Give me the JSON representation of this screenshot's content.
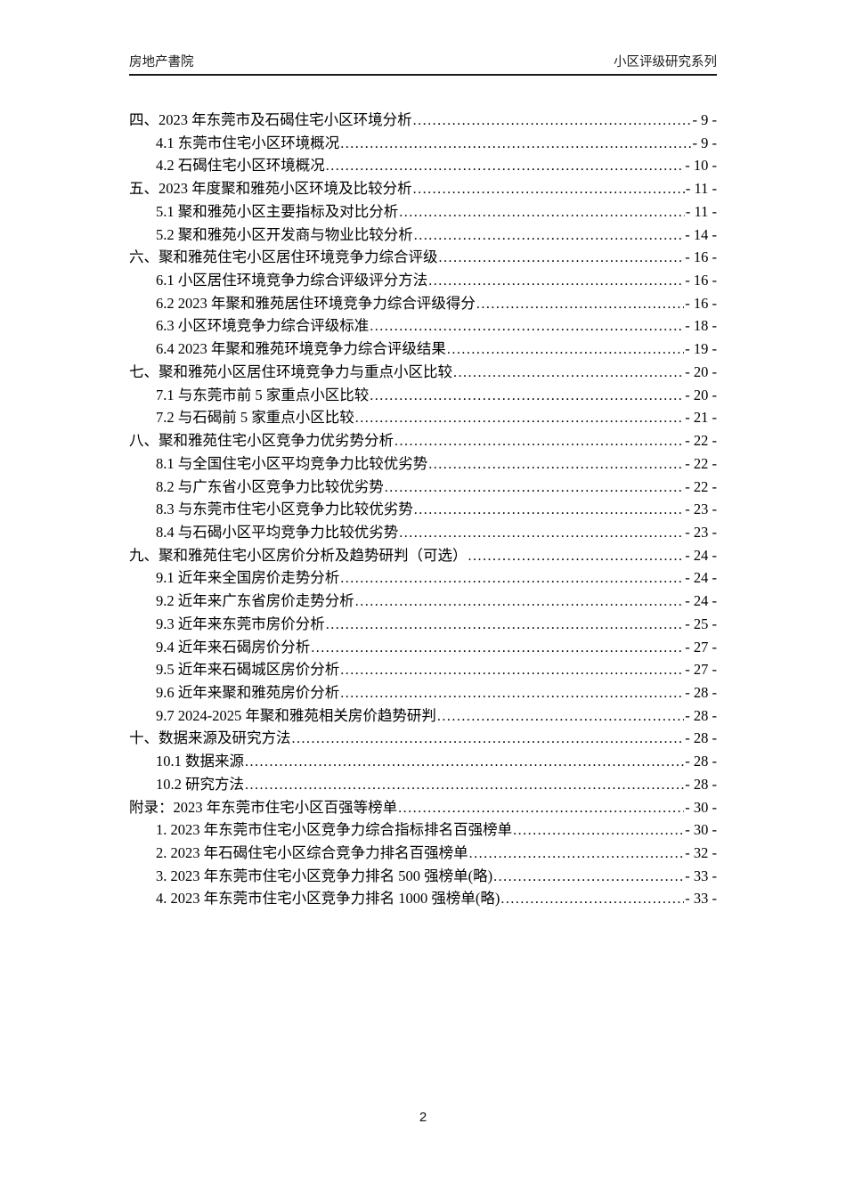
{
  "header": {
    "left": "房地产書院",
    "right": "小区评级研究系列"
  },
  "toc": {
    "items": [
      {
        "text": "四、2023 年东莞市及石碣住宅小区环境分析",
        "page": "- 9 -",
        "level": 0
      },
      {
        "text": "4.1 东莞市住宅小区环境概况",
        "page": "- 9 -",
        "level": 1
      },
      {
        "text": "4.2 石碣住宅小区环境概况",
        "page": "- 10 -",
        "level": 1
      },
      {
        "text": "五、2023 年度聚和雅苑小区环境及比较分析",
        "page": "- 11 -",
        "level": 0
      },
      {
        "text": "5.1 聚和雅苑小区主要指标及对比分析",
        "page": "- 11 -",
        "level": 1
      },
      {
        "text": "5.2 聚和雅苑小区开发商与物业比较分析",
        "page": "- 14 -",
        "level": 1
      },
      {
        "text": "六、聚和雅苑住宅小区居住环境竞争力综合评级",
        "page": "- 16 -",
        "level": 0
      },
      {
        "text": "6.1 小区居住环境竞争力综合评级评分方法",
        "page": "- 16 -",
        "level": 1
      },
      {
        "text": "6.2 2023 年聚和雅苑居住环境竞争力综合评级得分",
        "page": "- 16 -",
        "level": 1
      },
      {
        "text": "6.3 小区环境竞争力综合评级标准",
        "page": "- 18 -",
        "level": 1
      },
      {
        "text": "6.4 2023 年聚和雅苑环境竞争力综合评级结果",
        "page": "- 19 -",
        "level": 1
      },
      {
        "text": "七、聚和雅苑小区居住环境竞争力与重点小区比较",
        "page": "- 20 -",
        "level": 0
      },
      {
        "text": "7.1 与东莞市前 5 家重点小区比较",
        "page": "- 20 -",
        "level": 1
      },
      {
        "text": "7.2 与石碣前 5 家重点小区比较",
        "page": "- 21 -",
        "level": 1
      },
      {
        "text": "八、聚和雅苑住宅小区竞争力优劣势分析",
        "page": "- 22 -",
        "level": 0
      },
      {
        "text": "8.1 与全国住宅小区平均竞争力比较优劣势",
        "page": "- 22 -",
        "level": 1
      },
      {
        "text": "8.2 与广东省小区竞争力比较优劣势",
        "page": "- 22 -",
        "level": 1
      },
      {
        "text": "8.3 与东莞市住宅小区竞争力比较优劣势",
        "page": "- 23 -",
        "level": 1
      },
      {
        "text": "8.4 与石碣小区平均竞争力比较优劣势",
        "page": "- 23 -",
        "level": 1
      },
      {
        "text": "九、聚和雅苑住宅小区房价分析及趋势研判（可选）",
        "page": "- 24 -",
        "level": 0
      },
      {
        "text": "9.1 近年来全国房价走势分析",
        "page": "- 24 -",
        "level": 1
      },
      {
        "text": "9.2 近年来广东省房价走势分析",
        "page": "- 24 -",
        "level": 1
      },
      {
        "text": "9.3 近年来东莞市房价分析",
        "page": "- 25 -",
        "level": 1
      },
      {
        "text": "9.4 近年来石碣房价分析",
        "page": "- 27 -",
        "level": 1
      },
      {
        "text": "9.5 近年来石碣城区房价分析",
        "page": "- 27 -",
        "level": 1
      },
      {
        "text": "9.6 近年来聚和雅苑房价分析",
        "page": "- 28 -",
        "level": 1
      },
      {
        "text": "9.7 2024-2025 年聚和雅苑相关房价趋势研判",
        "page": "- 28 -",
        "level": 1
      },
      {
        "text": "十、数据来源及研究方法",
        "page": "- 28 -",
        "level": 0
      },
      {
        "text": "10.1 数据来源",
        "page": "- 28 -",
        "level": 1
      },
      {
        "text": "10.2 研究方法",
        "page": "- 28 -",
        "level": 1
      },
      {
        "text": "附录：2023 年东莞市住宅小区百强等榜单",
        "page": "- 30 -",
        "level": 0
      },
      {
        "text": "1. 2023 年东莞市住宅小区竞争力综合指标排名百强榜单",
        "page": "- 30 -",
        "level": 1
      },
      {
        "text": "2. 2023 年石碣住宅小区综合竞争力排名百强榜单",
        "page": "- 32 -",
        "level": 1
      },
      {
        "text": "3. 2023 年东莞市住宅小区竞争力排名 500 强榜单(略)",
        "page": "- 33 -",
        "level": 1
      },
      {
        "text": "4. 2023 年东莞市住宅小区竞争力排名 1000 强榜单(略)",
        "page": "- 33 -",
        "level": 1
      }
    ]
  },
  "footer": {
    "page_number": "2"
  }
}
